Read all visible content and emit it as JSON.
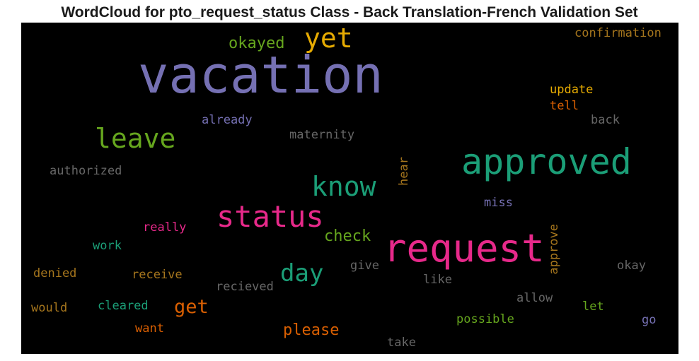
{
  "title": "WordCloud for pto_request_status Class - Back Translation-French Validation Set",
  "words": [
    {
      "text": "vacation",
      "color": "#7570b3"
    },
    {
      "text": "request",
      "color": "#e7298a"
    },
    {
      "text": "approved",
      "color": "#1b9e77"
    },
    {
      "text": "status",
      "color": "#e7298a"
    },
    {
      "text": "leave",
      "color": "#66a61e"
    },
    {
      "text": "know",
      "color": "#1b9e77"
    },
    {
      "text": "yet",
      "color": "#e6ab02"
    },
    {
      "text": "day",
      "color": "#1b9e77"
    },
    {
      "text": "okayed",
      "color": "#66a61e"
    },
    {
      "text": "confirmation",
      "color": "#a6761d"
    },
    {
      "text": "update",
      "color": "#e6ab02"
    },
    {
      "text": "tell",
      "color": "#d95f02"
    },
    {
      "text": "back",
      "color": "#666666"
    },
    {
      "text": "already",
      "color": "#7570b3"
    },
    {
      "text": "maternity",
      "color": "#666666"
    },
    {
      "text": "authorized",
      "color": "#666666"
    },
    {
      "text": "hear",
      "color": "#a6761d"
    },
    {
      "text": "miss",
      "color": "#7570b3"
    },
    {
      "text": "really",
      "color": "#e7298a"
    },
    {
      "text": "check",
      "color": "#66a61e"
    },
    {
      "text": "approve",
      "color": "#a6761d"
    },
    {
      "text": "work",
      "color": "#1b9e77"
    },
    {
      "text": "denied",
      "color": "#a6761d"
    },
    {
      "text": "receive",
      "color": "#a6761d"
    },
    {
      "text": "give",
      "color": "#666666"
    },
    {
      "text": "okay",
      "color": "#666666"
    },
    {
      "text": "recieved",
      "color": "#666666"
    },
    {
      "text": "like",
      "color": "#666666"
    },
    {
      "text": "allow",
      "color": "#666666"
    },
    {
      "text": "get",
      "color": "#d95f02"
    },
    {
      "text": "would",
      "color": "#a6761d"
    },
    {
      "text": "cleared",
      "color": "#1b9e77"
    },
    {
      "text": "let",
      "color": "#66a61e"
    },
    {
      "text": "go",
      "color": "#7570b3"
    },
    {
      "text": "possible",
      "color": "#66a61e"
    },
    {
      "text": "please",
      "color": "#d95f02"
    },
    {
      "text": "want",
      "color": "#d95f02"
    },
    {
      "text": "take",
      "color": "#666666"
    }
  ]
}
